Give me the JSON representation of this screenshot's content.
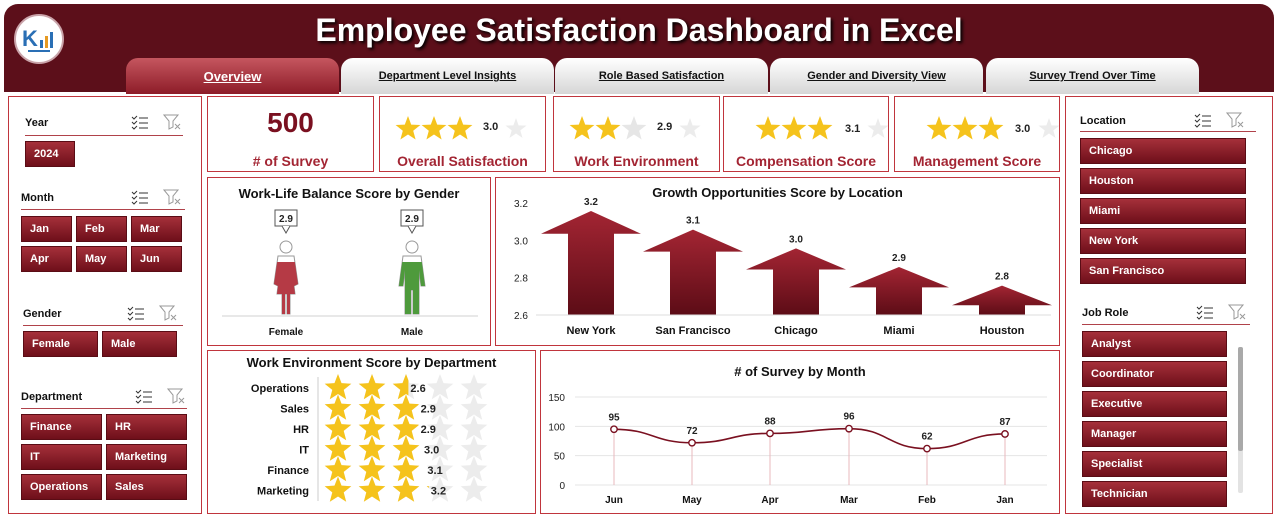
{
  "header": {
    "title": "Employee Satisfaction Dashboard in Excel",
    "tabs": [
      {
        "label": "Overview",
        "active": true
      },
      {
        "label": "Department Level Insights",
        "active": false
      },
      {
        "label": "Role Based Satisfaction",
        "active": false
      },
      {
        "label": "Gender and Diversity View",
        "active": false
      },
      {
        "label": "Survey Trend Over Time",
        "active": false
      }
    ]
  },
  "colors": {
    "accent": "#8d1c28",
    "header_bg": "#5c0f1a",
    "star": "#f5c31c",
    "female": "#b53a45",
    "male": "#4e9a3c"
  },
  "left_slicers": {
    "year": {
      "title": "Year",
      "items": [
        "2024"
      ]
    },
    "month": {
      "title": "Month",
      "items": [
        "Jan",
        "Feb",
        "Mar",
        "Apr",
        "May",
        "Jun"
      ]
    },
    "gender": {
      "title": "Gender",
      "items": [
        "Female",
        "Male"
      ]
    },
    "department": {
      "title": "Department",
      "items": [
        "Finance",
        "HR",
        "IT",
        "Marketing",
        "Operations",
        "Sales"
      ]
    }
  },
  "right_slicers": {
    "location": {
      "title": "Location",
      "items": [
        "Chicago",
        "Houston",
        "Miami",
        "New York",
        "San Francisco"
      ]
    },
    "job_role": {
      "title": "Job Role",
      "items": [
        "Analyst",
        "Coordinator",
        "Executive",
        "Manager",
        "Specialist",
        "Technician"
      ]
    }
  },
  "kpis": {
    "survey": {
      "value": "500",
      "label": "# of Survey"
    },
    "cards": [
      {
        "label": "Overall Satisfaction",
        "value": "3.0",
        "rating": 3.0
      },
      {
        "label": "Work Environment",
        "value": "2.9",
        "rating": 2.9
      },
      {
        "label": "Compensation Score",
        "value": "3.1",
        "rating": 3.1
      },
      {
        "label": "Management Score",
        "value": "3.0",
        "rating": 3.0
      }
    ]
  },
  "chart_data": [
    {
      "type": "bar",
      "title": "Work-Life Balance Score by Gender",
      "categories": [
        "Female",
        "Male"
      ],
      "values": [
        2.9,
        2.9
      ],
      "value_labels": [
        "2.9",
        "2.9"
      ]
    },
    {
      "type": "bar",
      "title": "Growth Opportunities Score by Location",
      "categories": [
        "New York",
        "San Francisco",
        "Chicago",
        "Miami",
        "Houston"
      ],
      "values": [
        3.2,
        3.1,
        3.0,
        2.9,
        2.8
      ],
      "value_labels": [
        "3.2",
        "3.1",
        "3.0",
        "2.9",
        "2.8"
      ],
      "ylim": [
        2.6,
        3.2
      ],
      "yticks": [
        "2.6",
        "2.8",
        "3.0",
        "3.2"
      ]
    },
    {
      "type": "bar",
      "title": "Work Environment Score by Department",
      "categories": [
        "Operations",
        "Sales",
        "HR",
        "IT",
        "Finance",
        "Marketing"
      ],
      "values": [
        2.6,
        2.9,
        2.9,
        3.0,
        3.1,
        3.2
      ],
      "value_labels": [
        "2.6",
        "2.9",
        "2.9",
        "3.0",
        "3.1",
        "3.2"
      ],
      "max_rating": 5
    },
    {
      "type": "line",
      "title": "# of Survey by Month",
      "categories": [
        "Jun",
        "May",
        "Apr",
        "Mar",
        "Feb",
        "Jan"
      ],
      "values": [
        95,
        72,
        88,
        96,
        62,
        87
      ],
      "value_labels": [
        "95",
        "72",
        "88",
        "96",
        "62",
        "87"
      ],
      "ylim": [
        0,
        150
      ],
      "yticks": [
        "0",
        "50",
        "100",
        "150"
      ]
    }
  ]
}
